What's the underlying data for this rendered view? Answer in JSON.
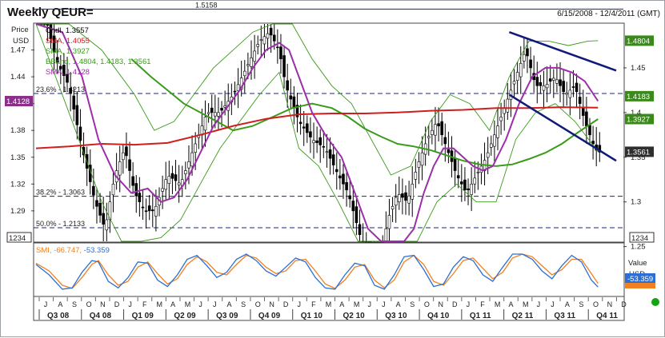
{
  "chart_data": {
    "type": "candlestick",
    "title": "Weekly QEUR=",
    "date_range": "6/15/2008 - 12/4/2011 (GMT)",
    "scale_box": "1234",
    "left_axis": {
      "label_line1": "Price",
      "label_line2": "USD",
      "ticks": [
        1.47,
        1.44,
        1.41,
        1.38,
        1.35,
        1.32,
        1.29
      ]
    },
    "right_axis": {
      "label": "Price",
      "ticks": [
        1.45,
        1.4,
        1.35,
        1.3,
        1.25
      ]
    },
    "ylim": [
      1.255,
      1.5
    ],
    "x_range": [
      0,
      178
    ],
    "months": [
      "J",
      "A",
      "S",
      "O",
      "N",
      "D",
      "J",
      "F",
      "M",
      "A",
      "M",
      "J",
      "J",
      "A",
      "S",
      "O",
      "N",
      "D",
      "J",
      "F",
      "M",
      "A",
      "M",
      "J",
      "J",
      "A",
      "S",
      "O",
      "N",
      "D",
      "J",
      "F",
      "M",
      "A",
      "M",
      "J",
      "J",
      "A",
      "S",
      "O",
      "N",
      "D"
    ],
    "quarters": [
      "Q3 08",
      "Q4 08",
      "Q1 09",
      "Q2 09",
      "Q3 09",
      "Q4 09",
      "Q1 10",
      "Q2 10",
      "Q3 10",
      "Q4 10",
      "Q1 11",
      "Q2 11",
      "Q3 11",
      "Q4 11"
    ],
    "levels": [
      {
        "label": "1.5158",
        "value": 1.5158,
        "style": "solid"
      },
      {
        "label": "23.6% - 1.4213",
        "value": 1.4213,
        "style": "dashed"
      },
      {
        "label": "38.2% - 1.3063",
        "value": 1.3063,
        "style": "dashed"
      },
      {
        "label": "50.0% - 1.2133",
        "value": 1.2133,
        "style": "dashed"
      }
    ],
    "legend": [
      {
        "label": "Cndl, 1.3557",
        "color": "#000000"
      },
      {
        "label": "SMA, 1.4055",
        "color": "#d01e1e"
      },
      {
        "label": "SMA, 1.3927",
        "color": "#3a9a1a"
      },
      {
        "label": "BBand, 1.4804, 1.4183, 1.3561",
        "color": "#3a9a1a"
      },
      {
        "label": "SMA, 1.4128",
        "color": "#9b2fa8"
      }
    ],
    "badges": [
      {
        "text": "1.4804",
        "value": 1.4804,
        "color": "#3a8a1a",
        "side": "right"
      },
      {
        "text": "1.4183",
        "value": 1.4183,
        "color": "#3a8a1a",
        "side": "right"
      },
      {
        "text": "1.3927",
        "value": 1.3927,
        "color": "#3a8a1a",
        "side": "right"
      },
      {
        "text": "1.3561",
        "value": 1.3561,
        "color": "#2e2e2e",
        "side": "right"
      },
      {
        "text": "1.4128",
        "value": 1.4128,
        "color": "#8c2e8c",
        "side": "left"
      }
    ],
    "close_anchors": [
      [
        0,
        1.55
      ],
      [
        6,
        1.46
      ],
      [
        10,
        1.43
      ],
      [
        14,
        1.36
      ],
      [
        18,
        1.3
      ],
      [
        21,
        1.27
      ],
      [
        24,
        1.33
      ],
      [
        27,
        1.36
      ],
      [
        30,
        1.31
      ],
      [
        33,
        1.29
      ],
      [
        36,
        1.29
      ],
      [
        40,
        1.33
      ],
      [
        44,
        1.32
      ],
      [
        48,
        1.36
      ],
      [
        52,
        1.4
      ],
      [
        56,
        1.4
      ],
      [
        60,
        1.42
      ],
      [
        64,
        1.45
      ],
      [
        68,
        1.48
      ],
      [
        71,
        1.49
      ],
      [
        74,
        1.47
      ],
      [
        76,
        1.43
      ],
      [
        80,
        1.39
      ],
      [
        84,
        1.37
      ],
      [
        88,
        1.36
      ],
      [
        92,
        1.33
      ],
      [
        95,
        1.31
      ],
      [
        98,
        1.27
      ],
      [
        101,
        1.23
      ],
      [
        104,
        1.22
      ],
      [
        107,
        1.28
      ],
      [
        110,
        1.31
      ],
      [
        113,
        1.3
      ],
      [
        116,
        1.34
      ],
      [
        119,
        1.37
      ],
      [
        122,
        1.39
      ],
      [
        125,
        1.36
      ],
      [
        128,
        1.33
      ],
      [
        131,
        1.31
      ],
      [
        134,
        1.33
      ],
      [
        137,
        1.35
      ],
      [
        140,
        1.38
      ],
      [
        143,
        1.41
      ],
      [
        146,
        1.44
      ],
      [
        149,
        1.47
      ],
      [
        152,
        1.43
      ],
      [
        155,
        1.43
      ],
      [
        158,
        1.44
      ],
      [
        161,
        1.42
      ],
      [
        164,
        1.43
      ],
      [
        167,
        1.39
      ],
      [
        170,
        1.36
      ],
      [
        171,
        1.3557
      ]
    ],
    "sma_red": [
      [
        0,
        1.36
      ],
      [
        10,
        1.362
      ],
      [
        20,
        1.365
      ],
      [
        30,
        1.364
      ],
      [
        40,
        1.366
      ],
      [
        50,
        1.375
      ],
      [
        60,
        1.385
      ],
      [
        70,
        1.393
      ],
      [
        80,
        1.398
      ],
      [
        90,
        1.399
      ],
      [
        100,
        1.399
      ],
      [
        110,
        1.4
      ],
      [
        120,
        1.402
      ],
      [
        130,
        1.403
      ],
      [
        140,
        1.405
      ],
      [
        150,
        1.405
      ],
      [
        160,
        1.406
      ],
      [
        171,
        1.4055
      ]
    ],
    "sma_green": [
      [
        29,
        1.46
      ],
      [
        35,
        1.44
      ],
      [
        40,
        1.425
      ],
      [
        45,
        1.41
      ],
      [
        50,
        1.4
      ],
      [
        55,
        1.39
      ],
      [
        60,
        1.38
      ],
      [
        66,
        1.385
      ],
      [
        72,
        1.395
      ],
      [
        78,
        1.405
      ],
      [
        84,
        1.41
      ],
      [
        90,
        1.405
      ],
      [
        95,
        1.395
      ],
      [
        100,
        1.382
      ],
      [
        105,
        1.373
      ],
      [
        110,
        1.365
      ],
      [
        115,
        1.362
      ],
      [
        120,
        1.358
      ],
      [
        125,
        1.352
      ],
      [
        130,
        1.346
      ],
      [
        135,
        1.342
      ],
      [
        140,
        1.34
      ],
      [
        145,
        1.342
      ],
      [
        150,
        1.348
      ],
      [
        155,
        1.355
      ],
      [
        160,
        1.365
      ],
      [
        165,
        1.378
      ],
      [
        171,
        1.3927
      ]
    ],
    "sma_purple": [
      [
        0,
        1.52
      ],
      [
        8,
        1.49
      ],
      [
        14,
        1.44
      ],
      [
        19,
        1.37
      ],
      [
        24,
        1.33
      ],
      [
        29,
        1.31
      ],
      [
        34,
        1.315
      ],
      [
        38,
        1.3
      ],
      [
        42,
        1.305
      ],
      [
        46,
        1.325
      ],
      [
        50,
        1.355
      ],
      [
        54,
        1.385
      ],
      [
        58,
        1.405
      ],
      [
        62,
        1.425
      ],
      [
        66,
        1.45
      ],
      [
        70,
        1.47
      ],
      [
        74,
        1.478
      ],
      [
        77,
        1.47
      ],
      [
        80,
        1.44
      ],
      [
        84,
        1.4
      ],
      [
        88,
        1.375
      ],
      [
        93,
        1.35
      ],
      [
        97,
        1.31
      ],
      [
        101,
        1.27
      ],
      [
        105,
        1.24
      ],
      [
        109,
        1.24
      ],
      [
        112,
        1.25
      ],
      [
        115,
        1.27
      ],
      [
        118,
        1.31
      ],
      [
        121,
        1.34
      ],
      [
        124,
        1.36
      ],
      [
        127,
        1.36
      ],
      [
        130,
        1.35
      ],
      [
        133,
        1.34
      ],
      [
        136,
        1.335
      ],
      [
        139,
        1.34
      ],
      [
        143,
        1.37
      ],
      [
        147,
        1.41
      ],
      [
        151,
        1.44
      ],
      [
        155,
        1.45
      ],
      [
        159,
        1.45
      ],
      [
        163,
        1.445
      ],
      [
        167,
        1.435
      ],
      [
        171,
        1.4128
      ]
    ],
    "bb_upper": [
      [
        0,
        1.62
      ],
      [
        10,
        1.55
      ],
      [
        20,
        1.47
      ],
      [
        30,
        1.42
      ],
      [
        36,
        1.38
      ],
      [
        42,
        1.39
      ],
      [
        48,
        1.42
      ],
      [
        54,
        1.45
      ],
      [
        60,
        1.47
      ],
      [
        66,
        1.49
      ],
      [
        72,
        1.505
      ],
      [
        78,
        1.5
      ],
      [
        84,
        1.46
      ],
      [
        90,
        1.43
      ],
      [
        96,
        1.41
      ],
      [
        102,
        1.37
      ],
      [
        108,
        1.33
      ],
      [
        114,
        1.34
      ],
      [
        120,
        1.39
      ],
      [
        126,
        1.42
      ],
      [
        132,
        1.41
      ],
      [
        138,
        1.38
      ],
      [
        144,
        1.44
      ],
      [
        150,
        1.48
      ],
      [
        156,
        1.48
      ],
      [
        162,
        1.475
      ],
      [
        168,
        1.48
      ],
      [
        171,
        1.4804
      ]
    ],
    "bb_lower": [
      [
        0,
        1.5
      ],
      [
        10,
        1.4
      ],
      [
        20,
        1.3
      ],
      [
        26,
        1.25
      ],
      [
        32,
        1.255
      ],
      [
        38,
        1.26
      ],
      [
        44,
        1.28
      ],
      [
        50,
        1.32
      ],
      [
        56,
        1.36
      ],
      [
        62,
        1.39
      ],
      [
        68,
        1.42
      ],
      [
        74,
        1.445
      ],
      [
        80,
        1.36
      ],
      [
        86,
        1.34
      ],
      [
        92,
        1.3
      ],
      [
        98,
        1.24
      ],
      [
        104,
        1.18
      ],
      [
        110,
        1.19
      ],
      [
        116,
        1.25
      ],
      [
        122,
        1.3
      ],
      [
        128,
        1.32
      ],
      [
        134,
        1.3
      ],
      [
        140,
        1.3
      ],
      [
        146,
        1.37
      ],
      [
        152,
        1.4
      ],
      [
        158,
        1.41
      ],
      [
        164,
        1.39
      ],
      [
        171,
        1.3561
      ]
    ],
    "trendlines": [
      {
        "from": [
          144,
          1.49
        ],
        "to": [
          178,
          1.447
        ]
      },
      {
        "from": [
          144,
          1.42
        ],
        "to": [
          178,
          1.346
        ]
      }
    ],
    "smi": {
      "axis_label": "Value",
      "axis_unit": "USD",
      "values": [
        -66.747,
        -53.359
      ],
      "line1": [
        [
          0,
          20
        ],
        [
          4,
          -20
        ],
        [
          8,
          -75
        ],
        [
          11,
          -70
        ],
        [
          14,
          -10
        ],
        [
          17,
          35
        ],
        [
          19,
          30
        ],
        [
          22,
          -45
        ],
        [
          25,
          -70
        ],
        [
          28,
          -30
        ],
        [
          31,
          30
        ],
        [
          34,
          25
        ],
        [
          37,
          -40
        ],
        [
          40,
          -65
        ],
        [
          43,
          -20
        ],
        [
          46,
          40
        ],
        [
          49,
          55
        ],
        [
          52,
          15
        ],
        [
          55,
          -30
        ],
        [
          58,
          -10
        ],
        [
          61,
          40
        ],
        [
          64,
          60
        ],
        [
          67,
          35
        ],
        [
          70,
          -5
        ],
        [
          73,
          -25
        ],
        [
          76,
          10
        ],
        [
          79,
          45
        ],
        [
          82,
          30
        ],
        [
          85,
          -30
        ],
        [
          88,
          -70
        ],
        [
          91,
          -75
        ],
        [
          94,
          -20
        ],
        [
          97,
          25
        ],
        [
          100,
          15
        ],
        [
          103,
          -60
        ],
        [
          106,
          -75
        ],
        [
          109,
          -20
        ],
        [
          112,
          50
        ],
        [
          115,
          55
        ],
        [
          118,
          0
        ],
        [
          121,
          -65
        ],
        [
          124,
          -55
        ],
        [
          127,
          10
        ],
        [
          130,
          50
        ],
        [
          133,
          35
        ],
        [
          136,
          -20
        ],
        [
          139,
          -45
        ],
        [
          142,
          10
        ],
        [
          145,
          60
        ],
        [
          148,
          60
        ],
        [
          151,
          40
        ],
        [
          154,
          -5
        ],
        [
          157,
          -35
        ],
        [
          160,
          15
        ],
        [
          163,
          55
        ],
        [
          166,
          30
        ],
        [
          169,
          -40
        ],
        [
          171,
          -66.747
        ]
      ],
      "line2": [
        [
          0,
          25
        ],
        [
          4,
          -5
        ],
        [
          8,
          -60
        ],
        [
          11,
          -72
        ],
        [
          14,
          -30
        ],
        [
          17,
          20
        ],
        [
          19,
          35
        ],
        [
          22,
          -20
        ],
        [
          25,
          -60
        ],
        [
          28,
          -45
        ],
        [
          31,
          10
        ],
        [
          34,
          30
        ],
        [
          37,
          -15
        ],
        [
          40,
          -55
        ],
        [
          43,
          -35
        ],
        [
          46,
          20
        ],
        [
          49,
          50
        ],
        [
          52,
          30
        ],
        [
          55,
          -10
        ],
        [
          58,
          -20
        ],
        [
          61,
          20
        ],
        [
          64,
          55
        ],
        [
          67,
          45
        ],
        [
          70,
          10
        ],
        [
          73,
          -15
        ],
        [
          76,
          -5
        ],
        [
          79,
          35
        ],
        [
          82,
          40
        ],
        [
          85,
          -5
        ],
        [
          88,
          -55
        ],
        [
          91,
          -72
        ],
        [
          94,
          -40
        ],
        [
          97,
          10
        ],
        [
          100,
          20
        ],
        [
          103,
          -40
        ],
        [
          106,
          -70
        ],
        [
          109,
          -40
        ],
        [
          112,
          30
        ],
        [
          115,
          55
        ],
        [
          118,
          20
        ],
        [
          121,
          -45
        ],
        [
          124,
          -60
        ],
        [
          127,
          -15
        ],
        [
          130,
          35
        ],
        [
          133,
          45
        ],
        [
          136,
          5
        ],
        [
          139,
          -35
        ],
        [
          142,
          -10
        ],
        [
          145,
          45
        ],
        [
          148,
          60
        ],
        [
          151,
          50
        ],
        [
          154,
          15
        ],
        [
          157,
          -20
        ],
        [
          160,
          0
        ],
        [
          163,
          40
        ],
        [
          166,
          40
        ],
        [
          169,
          -15
        ],
        [
          171,
          -53.359
        ]
      ],
      "ylim": [
        -100,
        100
      ],
      "color1": "#2b6fd6",
      "color2": "#f08020"
    },
    "colors": {
      "candle": "#000000",
      "sma_red": "#d01e1e",
      "sma_green": "#3a9a1a",
      "bband": "#3a9a1a",
      "sma_purple": "#9b2fa8",
      "trend": "#101a7a",
      "level": "#1a237e"
    }
  }
}
